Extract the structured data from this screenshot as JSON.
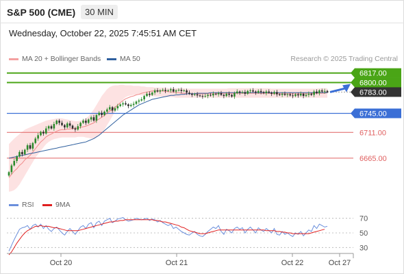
{
  "header": {
    "instrument": "S&P 500 (CME)",
    "timeframe": "30 MIN",
    "datetime": "Wednesday, October 22, 2025 7:45:51 AM CET"
  },
  "legend": {
    "ma20_bollinger": "MA 20 + Bollinger Bands",
    "ma50": "MA 50",
    "rsi": "RSI",
    "rsi_ma": "9MA"
  },
  "credit": "Research © 2025 Trading Central",
  "colors": {
    "resistance": "#4aa516",
    "pivot": "#3b6fd6",
    "support": "#e06060",
    "current": "#333333",
    "bollinger_fill": "#fde2e2",
    "ma20": "#f08a8a",
    "ma50": "#2e5f9e",
    "candle_up": "#2c8a2c",
    "candle_down": "#2a2a2a",
    "rsi": "#6a8fdc",
    "rsi_ma": "#e01e1e"
  },
  "chart_data": [
    {
      "type": "candlestick",
      "ylim": [
        6600,
        6830
      ],
      "x_tick_labels": [
        "Oct 20",
        "Oct 21",
        "Oct 22",
        "Oct 27"
      ],
      "price_levels": [
        {
          "value": 6817.0,
          "label": "6817.00",
          "kind": "resistance"
        },
        {
          "value": 6800.0,
          "label": "6800.00",
          "kind": "resistance"
        },
        {
          "value": 6783.0,
          "label": "6783.00",
          "kind": "current"
        },
        {
          "value": 6745.0,
          "label": "6745.00",
          "kind": "pivot"
        },
        {
          "value": 6711.0,
          "label": "6711.00",
          "kind": "support"
        },
        {
          "value": 6665.0,
          "label": "6665.00",
          "kind": "support"
        }
      ],
      "close": [
        6640,
        6652,
        6660,
        6668,
        6676,
        6672,
        6680,
        6688,
        6682,
        6692,
        6700,
        6706,
        6712,
        6709,
        6718,
        6722,
        6718,
        6726,
        6732,
        6728,
        6724,
        6720,
        6727,
        6723,
        6718,
        6716,
        6722,
        6728,
        6732,
        6728,
        6734,
        6738,
        6732,
        6742,
        6746,
        6742,
        6748,
        6752,
        6756,
        6750,
        6754,
        6758,
        6761,
        6763,
        6761,
        6758,
        6760,
        6762,
        6766,
        6768,
        6770,
        6776,
        6780,
        6778,
        6782,
        6786,
        6784,
        6786,
        6787,
        6785,
        6786,
        6788,
        6784,
        6786,
        6787,
        6785,
        6786,
        6782,
        6780,
        6778,
        6779,
        6777,
        6776,
        6775,
        6776,
        6778,
        6777,
        6780,
        6779,
        6781,
        6778,
        6776,
        6780,
        6778,
        6775,
        6781,
        6784,
        6782,
        6783,
        6780,
        6785,
        6786,
        6784,
        6782,
        6785,
        6783,
        6781,
        6784,
        6782,
        6780,
        6783,
        6779,
        6778,
        6780,
        6778,
        6779,
        6777,
        6776,
        6779,
        6777,
        6780,
        6776,
        6778,
        6780,
        6778,
        6784,
        6781,
        6786,
        6784,
        6785,
        6783
      ],
      "ma20": [
        6630,
        6636,
        6642,
        6646,
        6652,
        6656,
        6662,
        6666,
        6670,
        6676,
        6682,
        6688,
        6694,
        6698,
        6703,
        6706,
        6708,
        6711,
        6713,
        6715,
        6716,
        6716,
        6717,
        6717,
        6718,
        6718,
        6719,
        6720,
        6721,
        6722,
        6724,
        6726,
        6728,
        6732,
        6735,
        6738,
        6741,
        6745,
        6749,
        6752,
        6756,
        6760,
        6764,
        6768,
        6771,
        6773,
        6775,
        6776,
        6778,
        6779,
        6781,
        6782,
        6783,
        6784,
        6785,
        6785,
        6785,
        6785,
        6785,
        6784,
        6784,
        6783,
        6783,
        6782,
        6782,
        6781,
        6781,
        6780,
        6780,
        6780,
        6780,
        6780,
        6780,
        6780,
        6780,
        6780,
        6780,
        6780,
        6780,
        6781,
        6781,
        6781,
        6781,
        6781,
        6781,
        6781,
        6781,
        6781,
        6781,
        6781,
        6781,
        6781,
        6781,
        6781,
        6781,
        6781,
        6781,
        6781,
        6781,
        6780,
        6780,
        6780,
        6780,
        6780,
        6780,
        6780,
        6780,
        6780,
        6780,
        6780,
        6780,
        6780,
        6780,
        6780,
        6780,
        6781,
        6781,
        6781,
        6781,
        6781,
        6782
      ],
      "ma50": [
        6665,
        6666,
        6667,
        6668,
        6669,
        6670,
        6671,
        6672,
        6673,
        6674,
        6675,
        6676,
        6677,
        6678,
        6679,
        6680,
        6681,
        6682,
        6683,
        6684,
        6685,
        6686,
        6687,
        6688,
        6689,
        6690,
        6691,
        6692,
        6693,
        6694,
        6696,
        6698,
        6700,
        6703,
        6706,
        6710,
        6714,
        6718,
        6722,
        6726,
        6730,
        6734,
        6738,
        6742,
        6745,
        6748,
        6751,
        6754,
        6757,
        6760,
        6762,
        6764,
        6766,
        6768,
        6770,
        6771,
        6772,
        6773,
        6774,
        6775,
        6776,
        6777,
        6777,
        6778,
        6778,
        6779,
        6779,
        6780,
        6780,
        6780,
        6780,
        6781,
        6781,
        6781,
        6781,
        6781,
        6782,
        6782,
        6782,
        6782,
        6782,
        6782,
        6782,
        6782,
        6782,
        6782,
        6782,
        6782,
        6782,
        6782,
        6782,
        6782,
        6782,
        6782,
        6782,
        6782,
        6782,
        6782,
        6782,
        6782,
        6782,
        6782,
        6782,
        6782,
        6782,
        6782,
        6782,
        6782,
        6782,
        6782,
        6782,
        6782,
        6782,
        6782,
        6782,
        6782,
        6782,
        6782,
        6782,
        6782,
        6782
      ],
      "bb_upper": [
        6690,
        6695,
        6700,
        6704,
        6708,
        6712,
        6716,
        6718,
        6720,
        6722,
        6724,
        6726,
        6728,
        6730,
        6732,
        6733,
        6734,
        6735,
        6736,
        6736,
        6736,
        6735,
        6734,
        6733,
        6732,
        6731,
        6731,
        6732,
        6734,
        6736,
        6740,
        6746,
        6752,
        6760,
        6768,
        6776,
        6782,
        6788,
        6792,
        6794,
        6795,
        6795,
        6796,
        6796,
        6795,
        6795,
        6795,
        6794,
        6794,
        6794,
        6793,
        6793,
        6792,
        6792,
        6792,
        6791,
        6791,
        6791,
        6791,
        6791,
        6790,
        6790,
        6790,
        6790,
        6790,
        6790,
        6790,
        6789,
        6789,
        6789,
        6789,
        6789,
        6789,
        6789,
        6789,
        6789,
        6789,
        6789,
        6789,
        6789,
        6789,
        6789,
        6789,
        6790,
        6790,
        6790,
        6790,
        6790,
        6790,
        6790,
        6790,
        6790,
        6790,
        6790,
        6790,
        6790,
        6790,
        6790,
        6790,
        6789,
        6789,
        6789,
        6789,
        6789,
        6789,
        6789,
        6789,
        6789,
        6789,
        6789,
        6789,
        6789,
        6789,
        6789,
        6789,
        6789,
        6789,
        6790,
        6790,
        6790,
        6790
      ],
      "bb_lower": [
        6605,
        6606,
        6608,
        6612,
        6618,
        6626,
        6634,
        6642,
        6650,
        6658,
        6666,
        6672,
        6678,
        6684,
        6690,
        6694,
        6697,
        6699,
        6700,
        6701,
        6702,
        6702,
        6702,
        6702,
        6702,
        6702,
        6703,
        6703,
        6703,
        6702,
        6701,
        6700,
        6700,
        6702,
        6705,
        6710,
        6716,
        6724,
        6732,
        6740,
        6748,
        6756,
        6764,
        6770,
        6774,
        6776,
        6777,
        6778,
        6778,
        6778,
        6777,
        6777,
        6776,
        6776,
        6776,
        6775,
        6775,
        6775,
        6775,
        6774,
        6774,
        6774,
        6774,
        6773,
        6773,
        6773,
        6773,
        6773,
        6773,
        6773,
        6773,
        6773,
        6773,
        6773,
        6773,
        6773,
        6773,
        6773,
        6773,
        6773,
        6773,
        6773,
        6773,
        6773,
        6773,
        6773,
        6773,
        6773,
        6773,
        6773,
        6773,
        6773,
        6773,
        6773,
        6773,
        6773,
        6773,
        6773,
        6773,
        6773,
        6773,
        6773,
        6773,
        6773,
        6773,
        6773,
        6773,
        6773,
        6773,
        6773,
        6773,
        6773,
        6773,
        6773,
        6773,
        6773,
        6773,
        6773,
        6773,
        6773,
        6773
      ],
      "forecast": [
        6783,
        6800
      ]
    },
    {
      "type": "line",
      "name": "RSI",
      "ylim": [
        20,
        80
      ],
      "yticks": [
        70,
        50,
        30
      ],
      "rsi": [
        25,
        33,
        41,
        48,
        55,
        57,
        58,
        60,
        55,
        60,
        62,
        58,
        62,
        56,
        60,
        55,
        52,
        56,
        58,
        54,
        50,
        47,
        52,
        56,
        52,
        48,
        53,
        58,
        60,
        56,
        62,
        64,
        57,
        64,
        66,
        60,
        66,
        68,
        70,
        64,
        66,
        69,
        70,
        71,
        68,
        66,
        67,
        68,
        70,
        69,
        68,
        69,
        70,
        67,
        69,
        68,
        65,
        67,
        64,
        62,
        60,
        62,
        56,
        58,
        55,
        52,
        50,
        48,
        47,
        50,
        52,
        48,
        46,
        45,
        48,
        52,
        55,
        58,
        56,
        60,
        52,
        48,
        55,
        53,
        50,
        56,
        58,
        55,
        57,
        50,
        55,
        58,
        54,
        50,
        57,
        54,
        52,
        56,
        53,
        50,
        56,
        48,
        47,
        52,
        48,
        50,
        47,
        45,
        50,
        48,
        52,
        46,
        50,
        54,
        52,
        60,
        56,
        62,
        60,
        58,
        59
      ],
      "rsi_ma": [
        20,
        24,
        30,
        36,
        41,
        46,
        50,
        53,
        55,
        57,
        59,
        59,
        60,
        59,
        59,
        59,
        58,
        57,
        57,
        56,
        55,
        54,
        53,
        53,
        53,
        53,
        53,
        54,
        55,
        56,
        57,
        58,
        59,
        60,
        61,
        62,
        63,
        64,
        65,
        65,
        66,
        66,
        67,
        67,
        68,
        68,
        68,
        68,
        68,
        68,
        68,
        68,
        68,
        68,
        68,
        67,
        67,
        66,
        65,
        65,
        64,
        63,
        62,
        61,
        60,
        58,
        57,
        55,
        53,
        52,
        51,
        50,
        49,
        49,
        49,
        50,
        51,
        52,
        53,
        54,
        54,
        54,
        54,
        54,
        54,
        54,
        54,
        54,
        54,
        54,
        54,
        54,
        54,
        54,
        54,
        54,
        54,
        53,
        53,
        53,
        53,
        52,
        52,
        51,
        51,
        50,
        50,
        49,
        49,
        49,
        49,
        49,
        49,
        49,
        50,
        51,
        52,
        53,
        54,
        55
      ]
    }
  ]
}
